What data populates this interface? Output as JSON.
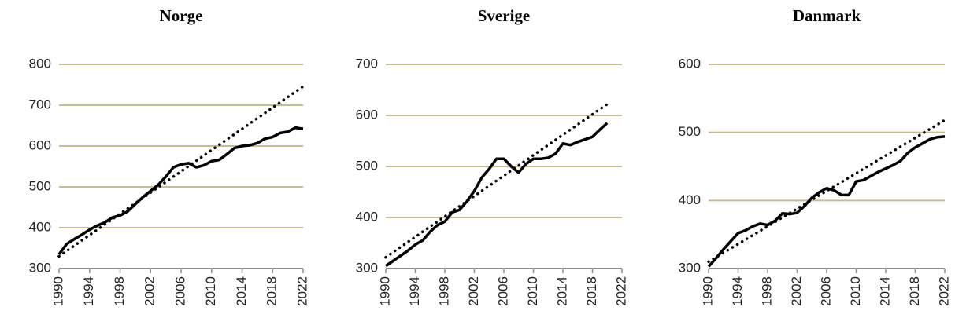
{
  "chart_data": [
    {
      "type": "line",
      "title": "Norge",
      "x": [
        1990,
        1991,
        1992,
        1993,
        1994,
        1995,
        1996,
        1997,
        1998,
        1999,
        2000,
        2001,
        2002,
        2003,
        2004,
        2005,
        2006,
        2007,
        2008,
        2009,
        2010,
        2011,
        2012,
        2013,
        2014,
        2015,
        2016,
        2017,
        2018,
        2019,
        2020,
        2021,
        2022
      ],
      "series": [
        {
          "color": "#000000",
          "style": "solid",
          "values": [
            335,
            360,
            372,
            383,
            395,
            405,
            413,
            425,
            430,
            440,
            458,
            475,
            490,
            505,
            525,
            548,
            555,
            558,
            548,
            553,
            563,
            566,
            580,
            595,
            600,
            602,
            607,
            618,
            622,
            632,
            635,
            645,
            642
          ]
        },
        {
          "color": "#000000",
          "style": "dotted",
          "values": [
            330,
            343,
            356,
            369,
            382,
            395,
            408,
            421,
            434,
            447,
            460,
            473,
            486,
            499,
            512,
            525,
            538,
            551,
            564,
            577,
            590,
            603,
            616,
            629,
            642,
            655,
            668,
            681,
            694,
            707,
            720,
            733,
            746
          ]
        }
      ],
      "xlim": [
        1990,
        2022
      ],
      "xticks": [
        1990,
        1994,
        1998,
        2002,
        2006,
        2010,
        2014,
        2018,
        2022
      ],
      "ylim": [
        300,
        800
      ],
      "yticks": [
        300,
        400,
        500,
        600,
        700,
        800
      ],
      "grid": true
    },
    {
      "type": "line",
      "title": "Sverige",
      "x": [
        1990,
        1991,
        1992,
        1993,
        1994,
        1995,
        1996,
        1997,
        1998,
        1999,
        2000,
        2001,
        2002,
        2003,
        2004,
        2005,
        2006,
        2007,
        2008,
        2009,
        2010,
        2011,
        2012,
        2013,
        2014,
        2015,
        2016,
        2017,
        2018,
        2019,
        2020,
        2021,
        2022
      ],
      "series": [
        {
          "color": "#000000",
          "style": "solid",
          "values": [
            305,
            315,
            325,
            335,
            347,
            355,
            372,
            385,
            392,
            410,
            415,
            432,
            452,
            478,
            495,
            515,
            515,
            500,
            488,
            505,
            515,
            515,
            517,
            525,
            545,
            542,
            548,
            553,
            558,
            572,
            585,
            null,
            null
          ]
        },
        {
          "color": "#000000",
          "style": "dotted",
          "values": [
            322,
            332,
            342,
            352,
            362,
            372,
            382,
            392,
            402,
            412,
            422,
            432,
            442,
            452,
            462,
            472,
            482,
            492,
            502,
            512,
            522,
            532,
            542,
            552,
            562,
            572,
            582,
            592,
            602,
            612,
            622,
            null,
            null
          ]
        }
      ],
      "xlim": [
        1990,
        2022
      ],
      "xticks": [
        1990,
        1994,
        1998,
        2002,
        2006,
        2010,
        2014,
        2018,
        2022
      ],
      "ylim": [
        300,
        700
      ],
      "yticks": [
        300,
        400,
        500,
        600,
        700
      ],
      "grid": true
    },
    {
      "type": "line",
      "title": "Danmark",
      "x": [
        1990,
        1991,
        1992,
        1993,
        1994,
        1995,
        1996,
        1997,
        1998,
        1999,
        2000,
        2001,
        2002,
        2003,
        2004,
        2005,
        2006,
        2007,
        2008,
        2009,
        2010,
        2011,
        2012,
        2013,
        2014,
        2015,
        2016,
        2017,
        2018,
        2019,
        2020,
        2021,
        2022
      ],
      "series": [
        {
          "color": "#000000",
          "style": "solid",
          "values": [
            303,
            315,
            328,
            340,
            352,
            356,
            362,
            366,
            364,
            370,
            381,
            380,
            382,
            392,
            404,
            412,
            418,
            415,
            408,
            408,
            428,
            430,
            436,
            442,
            447,
            452,
            458,
            470,
            478,
            484,
            490,
            493,
            494
          ]
        },
        {
          "color": "#000000",
          "style": "dotted",
          "values": [
            310,
            316.5,
            323,
            329.5,
            336,
            342.5,
            349,
            355.5,
            362,
            368.5,
            375,
            381.5,
            388,
            394.5,
            401,
            407.5,
            414,
            420.5,
            427,
            433.5,
            440,
            446.5,
            453,
            459.5,
            466,
            472.5,
            479,
            485.5,
            492,
            498.5,
            505,
            511.5,
            518
          ]
        }
      ],
      "xlim": [
        1990,
        2022
      ],
      "xticks": [
        1990,
        1994,
        1998,
        2002,
        2006,
        2010,
        2014,
        2018,
        2022
      ],
      "ylim": [
        300,
        600
      ],
      "yticks": [
        300,
        400,
        500,
        600
      ],
      "grid": true
    }
  ]
}
